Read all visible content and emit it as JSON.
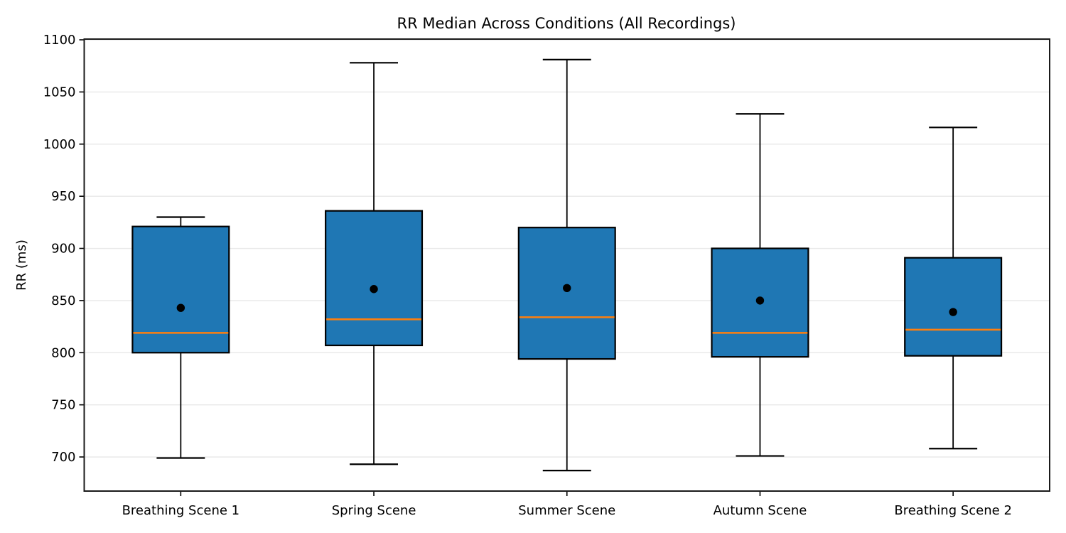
{
  "chart_data": {
    "type": "boxplot",
    "title": "RR Median Across Conditions (All Recordings)",
    "ylabel": "RR (ms)",
    "xlabel": "",
    "categories": [
      "Breathing Scene 1",
      "Spring Scene",
      "Summer Scene",
      "Autumn Scene",
      "Breathing Scene 2"
    ],
    "series": [
      {
        "name": "Breathing Scene 1",
        "whisker_low": 699,
        "q1": 800,
        "median": 819,
        "q3": 921,
        "whisker_high": 930,
        "mean": 843
      },
      {
        "name": "Spring Scene",
        "whisker_low": 693,
        "q1": 807,
        "median": 832,
        "q3": 936,
        "whisker_high": 1078,
        "mean": 861
      },
      {
        "name": "Summer Scene",
        "whisker_low": 687,
        "q1": 794,
        "median": 834,
        "q3": 920,
        "whisker_high": 1081,
        "mean": 862
      },
      {
        "name": "Autumn Scene",
        "whisker_low": 701,
        "q1": 796,
        "median": 819,
        "q3": 900,
        "whisker_high": 1029,
        "mean": 850
      },
      {
        "name": "Breathing Scene 2",
        "whisker_low": 708,
        "q1": 797,
        "median": 822,
        "q3": 891,
        "whisker_high": 1016,
        "mean": 839
      }
    ],
    "yticks": [
      700,
      750,
      800,
      850,
      900,
      950,
      1000,
      1050,
      1100
    ],
    "ylim": [
      667.3,
      1100.7
    ],
    "grid": "horizontal",
    "legend": "none",
    "colors": {
      "box_fill": "#1f77b4",
      "box_edge": "#000000",
      "median_line": "#ff7f0e",
      "whisker": "#000000",
      "mean_marker": "#000000",
      "grid_line": "#e8e8e8",
      "background": "#ffffff"
    }
  }
}
